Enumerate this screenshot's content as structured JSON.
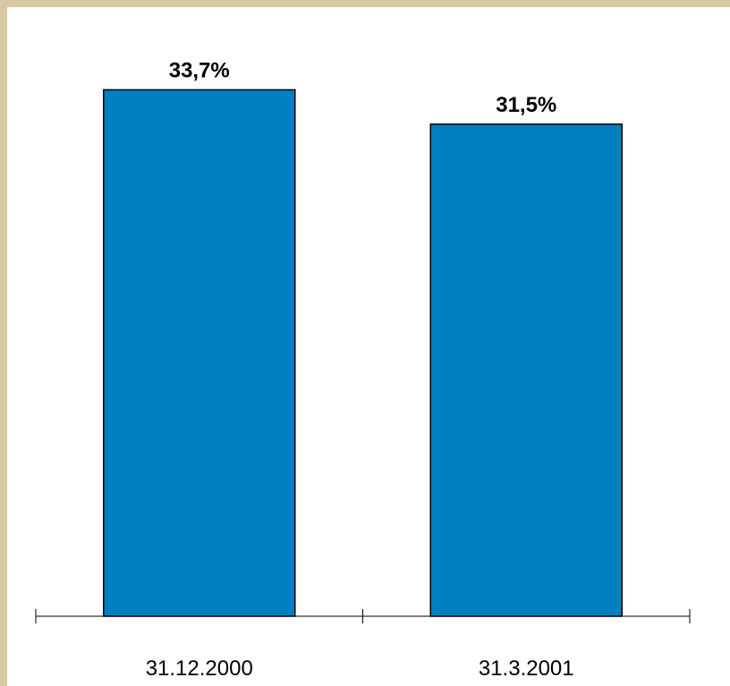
{
  "colors": {
    "bar_fill": "#0080c0",
    "background": "#ffffff",
    "frame": "#d8c8a0"
  },
  "chart_data": {
    "type": "bar",
    "categories": [
      "31.12.2000",
      "31.3.2001"
    ],
    "values": [
      33.7,
      31.5
    ],
    "value_labels": [
      "33,7%",
      "31,5%"
    ],
    "title": "",
    "xlabel": "",
    "ylabel": "",
    "ylim": [
      0,
      36.3
    ],
    "grid": false,
    "legend": "none"
  }
}
